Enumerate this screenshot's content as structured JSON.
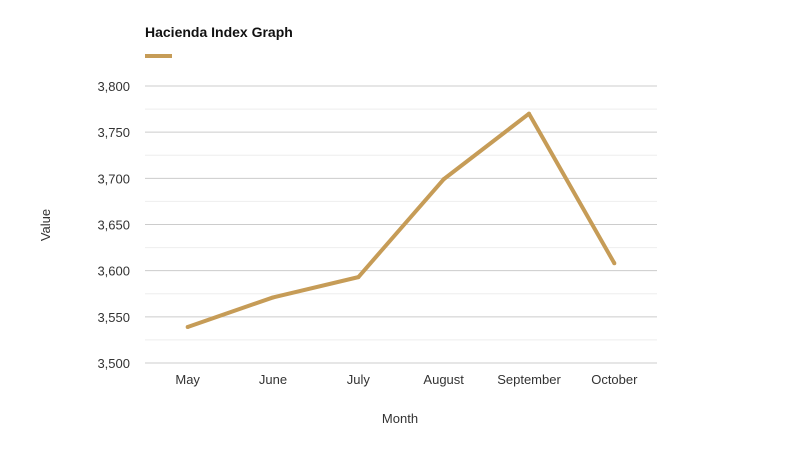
{
  "title": "Hacienda Index Graph",
  "colors": {
    "series": "#C69C57",
    "grid_major": "#cccccc",
    "grid_minor": "#eeeeee",
    "text": "#333333"
  },
  "chart_data": {
    "type": "line",
    "title": "Hacienda Index Graph",
    "xlabel": "Month",
    "ylabel": "Value",
    "categories": [
      "May",
      "June",
      "July",
      "August",
      "September",
      "October"
    ],
    "series": [
      {
        "values": [
          3539,
          3571,
          3593,
          3699,
          3770,
          3608
        ]
      }
    ],
    "ylim": [
      3500,
      3800
    ],
    "yticks": [
      3500,
      3550,
      3600,
      3650,
      3700,
      3750,
      3800
    ],
    "ytick_labels": [
      "3,500",
      "3,550",
      "3,600",
      "3,650",
      "3,700",
      "3,750",
      "3,800"
    ],
    "grid": true,
    "legend": false
  }
}
